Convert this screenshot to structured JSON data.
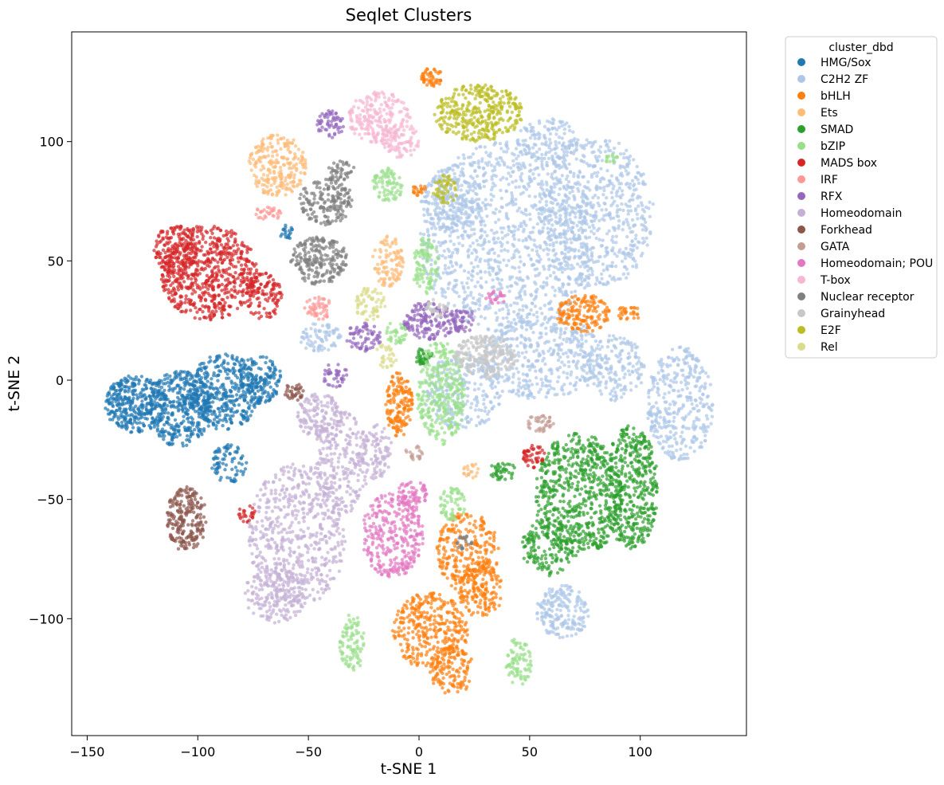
{
  "chart_data": {
    "type": "scatter",
    "title": "Seqlet Clusters",
    "xlabel": "t-SNE 1",
    "ylabel": "t-SNE 2",
    "xlim": [
      -157,
      148
    ],
    "ylim": [
      -149,
      146
    ],
    "xticks": [
      -150,
      -100,
      -50,
      0,
      50,
      100
    ],
    "yticks": [
      -100,
      -50,
      0,
      50,
      100
    ],
    "grid": false,
    "legend": {
      "title": "cluster_dbd",
      "position": "outside-top-right"
    },
    "series": [
      {
        "name": "HMG/Sox",
        "color": "#1f77b4",
        "clusters": [
          {
            "center": [
              -128,
              -10
            ],
            "radius": [
              14,
              12
            ],
            "density": 340
          },
          {
            "center": [
              -108,
              -12
            ],
            "radius": [
              14,
              16
            ],
            "density": 380
          },
          {
            "center": [
              -88,
              -5
            ],
            "radius": [
              16,
              16
            ],
            "density": 380
          },
          {
            "center": [
              -72,
              0
            ],
            "radius": [
              10,
              10
            ],
            "density": 160
          },
          {
            "center": [
              -86,
              -35
            ],
            "radius": [
              8,
              8
            ],
            "density": 80
          },
          {
            "center": [
              -60,
              62
            ],
            "radius": [
              3,
              3
            ],
            "density": 20
          }
        ]
      },
      {
        "name": "C2H2 ZF",
        "color": "#aec7e8",
        "clusters": [
          {
            "center": [
              40,
              60
            ],
            "radius": [
              40,
              40
            ],
            "density": 1100
          },
          {
            "center": [
              80,
              70
            ],
            "radius": [
              26,
              32
            ],
            "density": 620
          },
          {
            "center": [
              58,
              100
            ],
            "radius": [
              14,
              10
            ],
            "density": 140
          },
          {
            "center": [
              15,
              75
            ],
            "radius": [
              14,
              14
            ],
            "density": 200
          },
          {
            "center": [
              55,
              10
            ],
            "radius": [
              28,
              18
            ],
            "density": 420
          },
          {
            "center": [
              20,
              -5
            ],
            "radius": [
              18,
              16
            ],
            "density": 240
          },
          {
            "center": [
              118,
              -10
            ],
            "radius": [
              15,
              24
            ],
            "density": 360
          },
          {
            "center": [
              88,
              5
            ],
            "radius": [
              14,
              14
            ],
            "density": 180
          },
          {
            "center": [
              65,
              -97
            ],
            "radius": [
              12,
              11
            ],
            "density": 200
          },
          {
            "center": [
              -45,
              18
            ],
            "radius": [
              10,
              6
            ],
            "density": 80
          }
        ]
      },
      {
        "name": "bHLH",
        "color": "#ff7f0e",
        "clusters": [
          {
            "center": [
              22,
              -72
            ],
            "radius": [
              14,
              17
            ],
            "density": 260
          },
          {
            "center": [
              5,
              -105
            ],
            "radius": [
              17,
              16
            ],
            "density": 340
          },
          {
            "center": [
              15,
              -122
            ],
            "radius": [
              10,
              10
            ],
            "density": 120
          },
          {
            "center": [
              28,
              -88
            ],
            "radius": [
              10,
              12
            ],
            "density": 160
          },
          {
            "center": [
              74,
              28
            ],
            "radius": [
              12,
              8
            ],
            "density": 160
          },
          {
            "center": [
              -9,
              -10
            ],
            "radius": [
              6,
              14
            ],
            "density": 160
          },
          {
            "center": [
              6,
              127
            ],
            "radius": [
              5,
              4
            ],
            "density": 50
          },
          {
            "center": [
              0,
              80
            ],
            "radius": [
              3,
              3
            ],
            "density": 20
          },
          {
            "center": [
              95,
              28
            ],
            "radius": [
              6,
              3
            ],
            "density": 30
          }
        ]
      },
      {
        "name": "Ets",
        "color": "#ffbb78",
        "clusters": [
          {
            "center": [
              -64,
              90
            ],
            "radius": [
              13,
              13
            ],
            "density": 240
          },
          {
            "center": [
              -14,
              50
            ],
            "radius": [
              7,
              11
            ],
            "density": 100
          },
          {
            "center": [
              24,
              -38
            ],
            "radius": [
              4,
              3
            ],
            "density": 20
          }
        ]
      },
      {
        "name": "SMAD",
        "color": "#2ca02c",
        "clusters": [
          {
            "center": [
              72,
              -48
            ],
            "radius": [
              20,
              26
            ],
            "density": 640
          },
          {
            "center": [
              96,
              -45
            ],
            "radius": [
              12,
              26
            ],
            "density": 420
          },
          {
            "center": [
              58,
              -70
            ],
            "radius": [
              12,
              12
            ],
            "density": 150
          },
          {
            "center": [
              2,
              10
            ],
            "radius": [
              4,
              4
            ],
            "density": 40
          },
          {
            "center": [
              38,
              -38
            ],
            "radius": [
              6,
              4
            ],
            "density": 40
          }
        ]
      },
      {
        "name": "bZIP",
        "color": "#98df8a",
        "clusters": [
          {
            "center": [
              10,
              -5
            ],
            "radius": [
              11,
              22
            ],
            "density": 320
          },
          {
            "center": [
              3,
              48
            ],
            "radius": [
              6,
              12
            ],
            "density": 100
          },
          {
            "center": [
              -14,
              82
            ],
            "radius": [
              7,
              7
            ],
            "density": 80
          },
          {
            "center": [
              -30,
              -110
            ],
            "radius": [
              6,
              12
            ],
            "density": 90
          },
          {
            "center": [
              45,
              -118
            ],
            "radius": [
              6,
              10
            ],
            "density": 80
          },
          {
            "center": [
              15,
              -52
            ],
            "radius": [
              6,
              7
            ],
            "density": 60
          },
          {
            "center": [
              -10,
              20
            ],
            "radius": [
              5,
              5
            ],
            "density": 40
          },
          {
            "center": [
              87,
              93
            ],
            "radius": [
              3,
              2
            ],
            "density": 15
          }
        ]
      },
      {
        "name": "MADS box",
        "color": "#d62728",
        "clusters": [
          {
            "center": [
              -95,
              45
            ],
            "radius": [
              22,
              20
            ],
            "density": 640
          },
          {
            "center": [
              -110,
              55
            ],
            "radius": [
              10,
              10
            ],
            "density": 160
          },
          {
            "center": [
              -70,
              35
            ],
            "radius": [
              8,
              10
            ],
            "density": 120
          },
          {
            "center": [
              52,
              -32
            ],
            "radius": [
              5,
              5
            ],
            "density": 50
          },
          {
            "center": [
              -78,
              -56
            ],
            "radius": [
              4,
              4
            ],
            "density": 25
          }
        ]
      },
      {
        "name": "IRF",
        "color": "#ff9896",
        "clusters": [
          {
            "center": [
              -68,
              70
            ],
            "radius": [
              6,
              3
            ],
            "density": 30
          },
          {
            "center": [
              -45,
              30
            ],
            "radius": [
              7,
              5
            ],
            "density": 50
          }
        ]
      },
      {
        "name": "RFX",
        "color": "#9467bd",
        "clusters": [
          {
            "center": [
              -40,
              107
            ],
            "radius": [
              6,
              6
            ],
            "density": 60
          },
          {
            "center": [
              5,
              25
            ],
            "radius": [
              12,
              8
            ],
            "density": 160
          },
          {
            "center": [
              20,
              25
            ],
            "radius": [
              6,
              5
            ],
            "density": 50
          },
          {
            "center": [
              -25,
              18
            ],
            "radius": [
              8,
              6
            ],
            "density": 70
          },
          {
            "center": [
              -38,
              2
            ],
            "radius": [
              6,
              5
            ],
            "density": 40
          }
        ]
      },
      {
        "name": "Homeodomain",
        "color": "#c5b0d5",
        "clusters": [
          {
            "center": [
              -55,
              -65
            ],
            "radius": [
              22,
              30
            ],
            "density": 560
          },
          {
            "center": [
              -65,
              -90
            ],
            "radius": [
              14,
              12
            ],
            "density": 180
          },
          {
            "center": [
              -35,
              -35
            ],
            "radius": [
              12,
              22
            ],
            "density": 240
          },
          {
            "center": [
              -45,
              -15
            ],
            "radius": [
              10,
              10
            ],
            "density": 140
          },
          {
            "center": [
              -20,
              -30
            ],
            "radius": [
              8,
              12
            ],
            "density": 100
          }
        ]
      },
      {
        "name": "Forkhead",
        "color": "#8c564b",
        "clusters": [
          {
            "center": [
              -105,
              -58
            ],
            "radius": [
              9,
              14
            ],
            "density": 220
          },
          {
            "center": [
              -56,
              -5
            ],
            "radius": [
              5,
              4
            ],
            "density": 35
          }
        ]
      },
      {
        "name": "GATA",
        "color": "#c49c94",
        "clusters": [
          {
            "center": [
              55,
              -18
            ],
            "radius": [
              6,
              4
            ],
            "density": 40
          },
          {
            "center": [
              -2,
              -30
            ],
            "radius": [
              4,
              4
            ],
            "density": 20
          }
        ]
      },
      {
        "name": "Homeodomain; POU",
        "color": "#e377c2",
        "clusters": [
          {
            "center": [
              -12,
              -65
            ],
            "radius": [
              14,
              18
            ],
            "density": 320
          },
          {
            "center": [
              -3,
              -48
            ],
            "radius": [
              7,
              6
            ],
            "density": 60
          },
          {
            "center": [
              35,
              35
            ],
            "radius": [
              5,
              3
            ],
            "density": 25
          }
        ]
      },
      {
        "name": "T-box",
        "color": "#f7b6d2",
        "clusters": [
          {
            "center": [
              -18,
              110
            ],
            "radius": [
              14,
              11
            ],
            "density": 220
          },
          {
            "center": [
              -8,
              100
            ],
            "radius": [
              8,
              8
            ],
            "density": 70
          }
        ]
      },
      {
        "name": "Nuclear receptor",
        "color": "#7f7f7f",
        "clusters": [
          {
            "center": [
              -45,
              50
            ],
            "radius": [
              13,
              10
            ],
            "density": 220
          },
          {
            "center": [
              -42,
              75
            ],
            "radius": [
              12,
              10
            ],
            "density": 180
          },
          {
            "center": [
              -35,
              88
            ],
            "radius": [
              6,
              4
            ],
            "density": 40
          },
          {
            "center": [
              20,
              -68
            ],
            "radius": [
              4,
              3
            ],
            "density": 20
          }
        ]
      },
      {
        "name": "Grainyhead",
        "color": "#c7c7c7",
        "clusters": [
          {
            "center": [
              30,
              10
            ],
            "radius": [
              14,
              9
            ],
            "density": 220
          },
          {
            "center": [
              8,
              30
            ],
            "radius": [
              5,
              4
            ],
            "density": 30
          }
        ]
      },
      {
        "name": "E2F",
        "color": "#bcbd22",
        "clusters": [
          {
            "center": [
              27,
              112
            ],
            "radius": [
              20,
              12
            ],
            "density": 360
          },
          {
            "center": [
              12,
              80
            ],
            "radius": [
              6,
              6
            ],
            "density": 50
          }
        ]
      },
      {
        "name": "Rel",
        "color": "#dbdb8d",
        "clusters": [
          {
            "center": [
              -22,
              32
            ],
            "radius": [
              7,
              7
            ],
            "density": 70
          },
          {
            "center": [
              -15,
              10
            ],
            "radius": [
              5,
              5
            ],
            "density": 30
          }
        ]
      }
    ]
  }
}
